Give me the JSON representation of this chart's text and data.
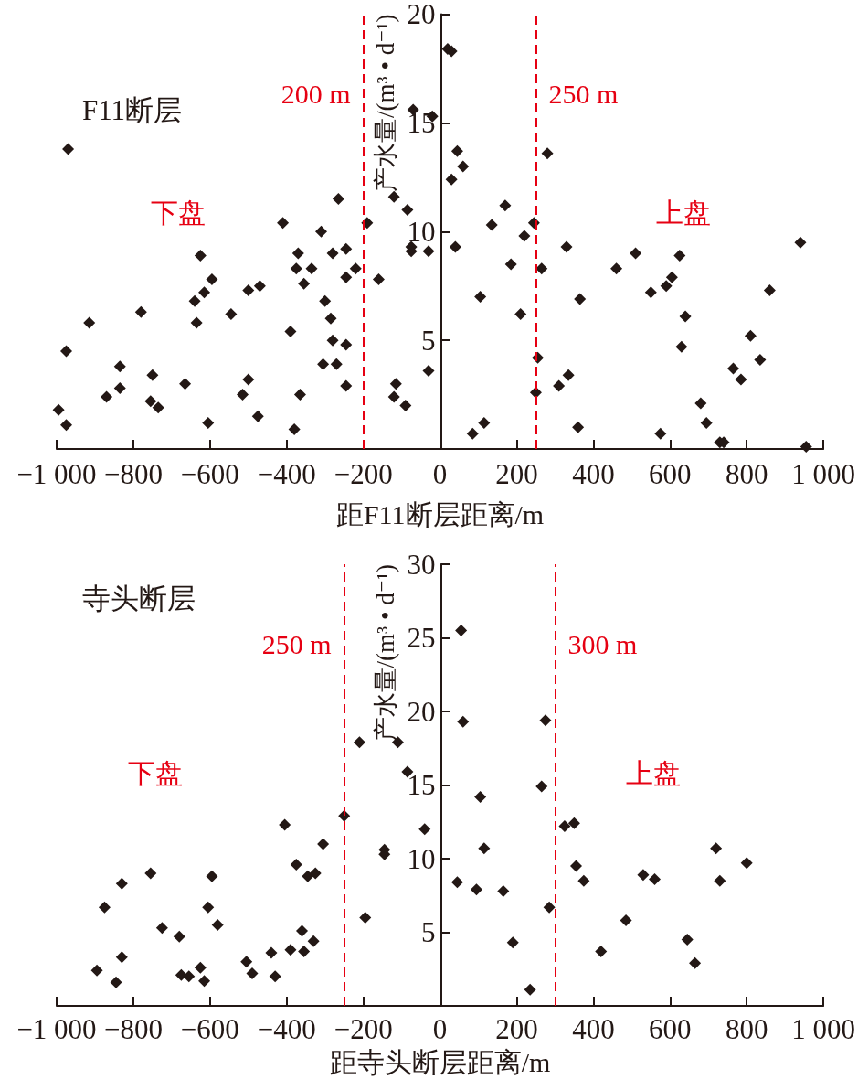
{
  "chart_data": [
    {
      "type": "scatter",
      "title": "F11断层",
      "xlabel": "距F11断层距离/m",
      "ylabel": "产水量/(m³ • d⁻¹)",
      "marker": "diamond",
      "xlim": [
        -1000,
        1000
      ],
      "xticks": [
        {
          "value": -1000,
          "label": "−1 000"
        },
        {
          "value": -800,
          "label": "−800"
        },
        {
          "value": -600,
          "label": "−600"
        },
        {
          "value": -400,
          "label": "−400"
        },
        {
          "value": -200,
          "label": "−200"
        },
        0,
        200,
        400,
        600,
        800,
        {
          "value": 1000,
          "label": "1 000"
        }
      ],
      "ylim": [
        0,
        20
      ],
      "yticks": [
        5,
        10,
        15,
        20
      ],
      "series": [
        {
          "color": "#231815",
          "x": [
            -970,
            -975,
            -995,
            -975,
            -915,
            -835,
            -835,
            -870,
            -780,
            -750,
            -755,
            -735,
            -665,
            -625,
            -595,
            -615,
            -640,
            -635,
            -605,
            -545,
            -500,
            -470,
            -500,
            -515,
            -475,
            -410,
            -390,
            -380,
            -365,
            -370,
            -375,
            -355,
            -335,
            -310,
            -300,
            -285,
            -280,
            -305,
            -270,
            -265,
            -280,
            -245,
            -245,
            -245,
            -245,
            -220,
            -190,
            -160,
            -120,
            -85,
            -75,
            -75,
            -30,
            -70,
            -20,
            -115,
            -120,
            -90,
            -30,
            20,
            30,
            45,
            60,
            30,
            170,
            135,
            245,
            220,
            40,
            330,
            280,
            185,
            265,
            105,
            210,
            365,
            460,
            510,
            625,
            605,
            590,
            550,
            940,
            860,
            640,
            630,
            810,
            835,
            765,
            785,
            680,
            695,
            575,
            730,
            740,
            955,
            360,
            255,
            250,
            310,
            335,
            115,
            85
          ],
          "values": [
            13.8,
            4.5,
            1.8,
            1.1,
            5.8,
            3.8,
            2.8,
            2.4,
            6.3,
            3.4,
            2.2,
            1.9,
            3.0,
            8.9,
            7.8,
            7.2,
            6.8,
            5.8,
            1.2,
            6.2,
            7.3,
            7.5,
            3.2,
            2.5,
            1.5,
            10.4,
            5.4,
            0.9,
            2.5,
            9.0,
            8.3,
            7.6,
            8.3,
            10.0,
            6.8,
            6.0,
            5.0,
            3.9,
            3.9,
            11.5,
            9.0,
            9.2,
            7.9,
            4.8,
            2.9,
            8.3,
            10.4,
            7.8,
            11.6,
            11.0,
            9.3,
            9.1,
            9.1,
            15.6,
            15.3,
            3.0,
            2.4,
            2.0,
            3.6,
            18.4,
            18.3,
            13.7,
            13.0,
            12.4,
            11.2,
            10.3,
            10.4,
            9.8,
            9.3,
            9.3,
            13.6,
            8.5,
            8.3,
            7.0,
            6.2,
            6.9,
            8.3,
            9.0,
            8.9,
            7.9,
            7.5,
            7.2,
            9.5,
            7.3,
            6.1,
            4.7,
            5.2,
            4.1,
            3.7,
            3.2,
            2.1,
            1.2,
            0.7,
            0.3,
            0.3,
            0.1,
            1.0,
            4.2,
            2.6,
            2.9,
            3.4,
            1.2,
            0.7
          ]
        }
      ],
      "ref_lines": [
        {
          "axis": "x",
          "value": -200,
          "label": "200 m",
          "color": "#e60012",
          "line_style": "dashed"
        },
        {
          "axis": "x",
          "value": 250,
          "label": "250 m",
          "color": "#e60012",
          "line_style": "dashed"
        }
      ],
      "annotations": [
        "下盘",
        "上盘"
      ]
    },
    {
      "type": "scatter",
      "title": "寺头断层",
      "xlabel": "距寺头断层距离/m",
      "ylabel": "产水量/(m³ • d⁻¹)",
      "marker": "diamond",
      "xlim": [
        -1000,
        1000
      ],
      "xticks": [
        {
          "value": -1000,
          "label": "−1 000"
        },
        {
          "value": -800,
          "label": "−800"
        },
        {
          "value": -600,
          "label": "−600"
        },
        {
          "value": -400,
          "label": "−400"
        },
        {
          "value": -200,
          "label": "−200"
        },
        0,
        200,
        400,
        600,
        800,
        {
          "value": 1000,
          "label": "1 000"
        }
      ],
      "ylim": [
        0,
        30
      ],
      "yticks": [
        5,
        10,
        15,
        20,
        25,
        30
      ],
      "series": [
        {
          "color": "#231815",
          "x": [
            -895,
            -875,
            -845,
            -830,
            -830,
            -755,
            -725,
            -680,
            -675,
            -655,
            -625,
            -615,
            -595,
            -605,
            -580,
            -505,
            -490,
            -440,
            -430,
            -405,
            -390,
            -375,
            -360,
            -355,
            -345,
            -325,
            -330,
            -305,
            -250,
            -195,
            -210,
            -110,
            -85,
            -145,
            -145,
            -40,
            55,
            60,
            275,
            265,
            105,
            115,
            325,
            350,
            355,
            375,
            45,
            95,
            165,
            285,
            190,
            235,
            485,
            420,
            530,
            560,
            645,
            665,
            720,
            730,
            800
          ],
          "values": [
            2.4,
            6.7,
            1.6,
            3.3,
            8.3,
            9.0,
            5.3,
            4.7,
            2.1,
            2.0,
            2.6,
            1.7,
            8.8,
            6.7,
            5.5,
            3.0,
            2.2,
            3.6,
            2.0,
            12.3,
            3.8,
            9.6,
            5.1,
            3.7,
            8.8,
            9.0,
            4.4,
            11.0,
            12.9,
            6.0,
            17.9,
            17.9,
            15.9,
            10.6,
            10.3,
            12.0,
            25.5,
            19.3,
            19.4,
            14.9,
            14.2,
            10.7,
            12.2,
            12.4,
            9.5,
            8.5,
            8.4,
            7.9,
            7.8,
            6.7,
            4.3,
            1.1,
            5.8,
            3.7,
            8.9,
            8.6,
            4.5,
            2.9,
            10.7,
            8.5,
            9.7
          ]
        }
      ],
      "ref_lines": [
        {
          "axis": "x",
          "value": -250,
          "label": "250 m",
          "color": "#e60012",
          "line_style": "dashed"
        },
        {
          "axis": "x",
          "value": 300,
          "label": "300 m",
          "color": "#e60012",
          "line_style": "dashed"
        }
      ],
      "annotations": [
        "下盘",
        "上盘"
      ]
    }
  ]
}
